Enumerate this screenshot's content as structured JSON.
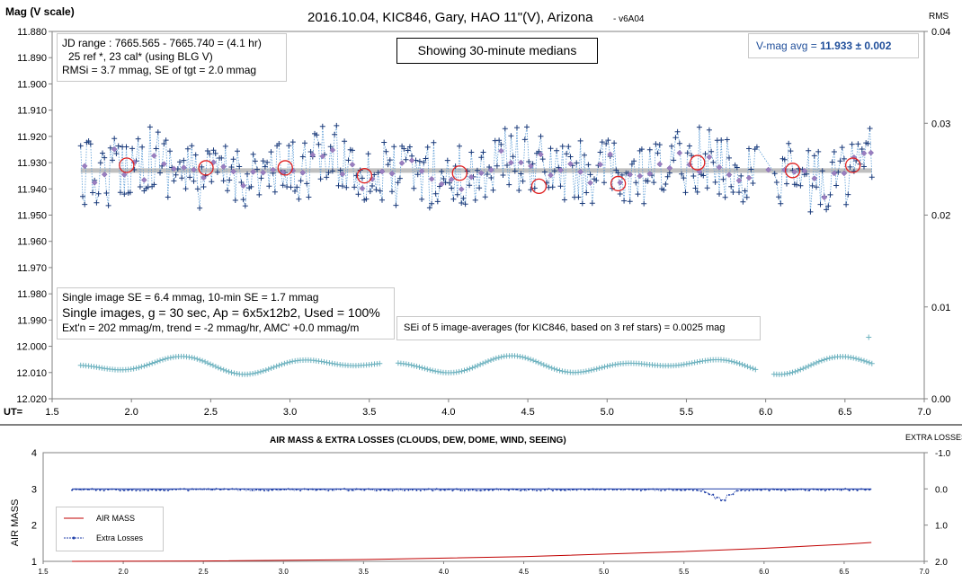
{
  "top": {
    "title": "2016.10.04, KIC846, Gary, HAO 11\"(V), Arizona",
    "version": "- v6A04",
    "ylabel": "Mag (V scale)",
    "y2label": "RMS",
    "xlabel": "UT=",
    "info_box": {
      "line1": "JD range : 7665.565 - 7665.740 = (4.1 hr)",
      "line2": "25 ref *, 23 cal* (using BLG V)",
      "line3": "RMSi = 3.7 mmag, SE of tgt = 2.0 mmag"
    },
    "median_box": "Showing 30-minute medians",
    "vmag_box": {
      "label": "V-mag avg =",
      "value": "11.933",
      "err": "± 0.002"
    },
    "single_box": {
      "line1": "Single image SE = 6.4 mmag, 10-min SE = 1.7 mmag",
      "line2": "Single images, g = 30 sec, Ap = 6x5x12b2, Used = 100%",
      "line3": "Ext'n = 202 mmag/m, trend = -2 mmag/hr, AMC' +0.0 mmag/m"
    },
    "sei_box": "SEi of 5 image-averages (for KIC846, based on 3 ref stars) = 0.0025 mag"
  },
  "bottom": {
    "title": "AIR MASS & EXTRA LOSSES (CLOUDS, DEW, DOME, WIND, SEEING)",
    "ylabel": "AIR MASS",
    "y2label": "EXTRA LOSSES",
    "legend": {
      "airmass": "AIR MASS",
      "losses": "Extra Losses"
    }
  },
  "colors": {
    "data": "#1a3a7a",
    "dotted": "#5b9bd5",
    "median": "#e02020",
    "avg": "#c0c0c0",
    "rms": "#6fb3c0",
    "airmass": "#c00000",
    "losses": "#1f3fa8"
  },
  "chart_data": [
    {
      "type": "scatter",
      "title": "2016.10.04, KIC846, Gary, HAO 11\"(V), Arizona",
      "xlim": [
        1.5,
        7.0
      ],
      "xticks": [
        "1.5",
        "2.0",
        "2.5",
        "3.0",
        "3.5",
        "4.0",
        "4.5",
        "5.0",
        "5.5",
        "6.0",
        "6.5",
        "7.0"
      ],
      "ylim": [
        12.02,
        11.88
      ],
      "yticks": [
        "11.880",
        "11.890",
        "11.900",
        "11.910",
        "11.920",
        "11.930",
        "11.940",
        "11.950",
        "11.960",
        "11.970",
        "11.980",
        "11.990",
        "12.000",
        "12.010",
        "12.020"
      ],
      "y2lim": [
        0,
        0.04
      ],
      "y2ticks": [
        "0.00",
        "0.01",
        "0.02",
        "0.03",
        "0.04"
      ],
      "vmag_average": 11.933,
      "medians_30min": {
        "x": [
          1.97,
          2.47,
          2.97,
          3.47,
          4.07,
          4.57,
          5.07,
          5.57,
          6.17,
          6.55
        ],
        "y": [
          11.931,
          11.932,
          11.932,
          11.935,
          11.934,
          11.939,
          11.938,
          11.93,
          11.933,
          11.931
        ]
      },
      "single_images": {
        "x_range": [
          1.68,
          6.67
        ],
        "y_min": 11.913,
        "y_max": 11.958,
        "n_approx": 400
      },
      "rms_series": {
        "x_range": [
          1.68,
          6.67
        ],
        "y_range": [
          0.0025,
          0.0048
        ],
        "outlier": {
          "x": 6.65,
          "y": 0.0067
        }
      }
    },
    {
      "type": "line",
      "title": "AIR MASS & EXTRA LOSSES (CLOUDS, DEW, DOME, WIND, SEEING)",
      "xlim": [
        1.5,
        7.0
      ],
      "xticks": [
        "1.5",
        "2.0",
        "2.5",
        "3.0",
        "3.5",
        "4.0",
        "4.5",
        "5.0",
        "5.5",
        "6.0",
        "6.5",
        "7.0"
      ],
      "ylim": [
        1,
        4
      ],
      "yticks": [
        "1",
        "2",
        "3",
        "4"
      ],
      "y2lim": [
        2.0,
        -1.0
      ],
      "y2ticks": [
        "-1.0",
        "0.0",
        "1.0",
        "2.0"
      ],
      "series": [
        {
          "name": "AIR MASS",
          "x": [
            1.68,
            2.5,
            3.5,
            4.5,
            5.5,
            6.0,
            6.5,
            6.67
          ],
          "y": [
            1.0,
            1.01,
            1.05,
            1.13,
            1.27,
            1.36,
            1.47,
            1.52
          ]
        },
        {
          "name": "Extra Losses",
          "x_range": [
            1.68,
            6.67
          ],
          "typical": 0.05,
          "max_dip": {
            "x": 5.73,
            "y": 0.33
          }
        }
      ]
    }
  ]
}
